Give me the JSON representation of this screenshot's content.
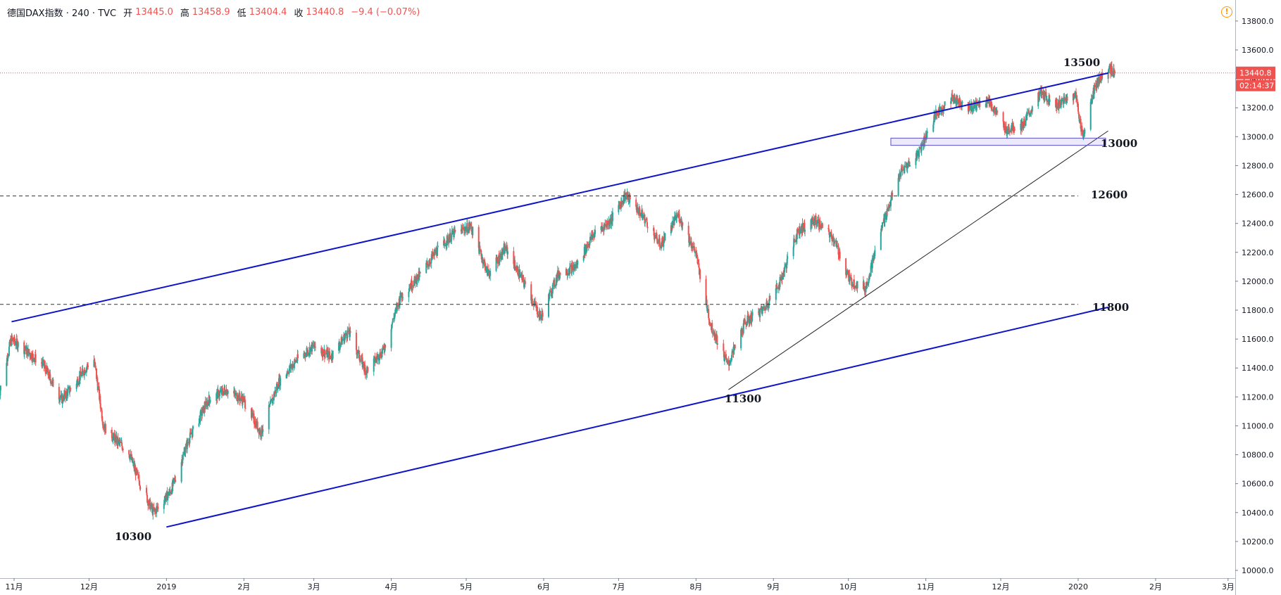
{
  "header": {
    "symbol": "德国DAX指数 · 240 · TVC",
    "open_label": "开",
    "open": "13445.0",
    "high_label": "高",
    "high": "13458.9",
    "low_label": "低",
    "low": "13404.4",
    "close_label": "收",
    "close": "13440.8",
    "change": "−9.4 (−0.07%)"
  },
  "icons": {
    "warning": "warning-icon",
    "settings": "gear-icon"
  },
  "colors": {
    "up": "#26a69a",
    "down": "#ef5350",
    "channel": "#0d14c8",
    "price_tag": "#ef5350"
  },
  "chart_data": {
    "type": "candlestick",
    "title": "",
    "xlabel": "",
    "ylabel": "",
    "ylim": [
      9900,
      13850
    ],
    "y_ticks": [
      "10000.0",
      "10200.0",
      "10400.0",
      "10600.0",
      "10800.0",
      "11000.0",
      "11200.0",
      "11400.0",
      "11600.0",
      "11800.0",
      "12000.0",
      "12200.0",
      "12400.0",
      "12600.0",
      "12800.0",
      "13000.0",
      "13200.0",
      "13400.0",
      "13600.0",
      "13800.0"
    ],
    "x_ticks": [
      "11月",
      "12月",
      "2019",
      "2月",
      "3月",
      "4月",
      "5月",
      "6月",
      "7月",
      "8月",
      "9月",
      "10月",
      "11月",
      "12月",
      "2020",
      "2月",
      "3月"
    ],
    "last_price": "13440.8",
    "countdown": "02:14:37",
    "price_path": [
      [
        "2018-10-26",
        11200
      ],
      [
        "2018-10-31",
        11600
      ],
      [
        "2018-11-06",
        11520
      ],
      [
        "2018-11-13",
        11420
      ],
      [
        "2018-11-20",
        11180
      ],
      [
        "2018-11-26",
        11300
      ],
      [
        "2018-12-03",
        11480
      ],
      [
        "2018-12-07",
        11000
      ],
      [
        "2018-12-12",
        10900
      ],
      [
        "2018-12-17",
        10820
      ],
      [
        "2018-12-21",
        10630
      ],
      [
        "2018-12-27",
        10400
      ],
      [
        "2019-01-03",
        10550
      ],
      [
        "2019-01-10",
        10900
      ],
      [
        "2019-01-18",
        11180
      ],
      [
        "2019-01-25",
        11250
      ],
      [
        "2019-02-01",
        11180
      ],
      [
        "2019-02-08",
        10950
      ],
      [
        "2019-02-15",
        11300
      ],
      [
        "2019-02-22",
        11450
      ],
      [
        "2019-03-01",
        11550
      ],
      [
        "2019-03-08",
        11480
      ],
      [
        "2019-03-15",
        11650
      ],
      [
        "2019-03-22",
        11380
      ],
      [
        "2019-03-29",
        11520
      ],
      [
        "2019-04-05",
        11900
      ],
      [
        "2019-04-12",
        12030
      ],
      [
        "2019-04-19",
        12200
      ],
      [
        "2019-04-26",
        12330
      ],
      [
        "2019-05-03",
        12380
      ],
      [
        "2019-05-10",
        12050
      ],
      [
        "2019-05-17",
        12230
      ],
      [
        "2019-05-24",
        12000
      ],
      [
        "2019-05-31",
        11750
      ],
      [
        "2019-06-07",
        12050
      ],
      [
        "2019-06-14",
        12100
      ],
      [
        "2019-06-21",
        12320
      ],
      [
        "2019-06-28",
        12420
      ],
      [
        "2019-07-04",
        12600
      ],
      [
        "2019-07-11",
        12450
      ],
      [
        "2019-07-18",
        12250
      ],
      [
        "2019-07-25",
        12460
      ],
      [
        "2019-08-01",
        12200
      ],
      [
        "2019-08-07",
        11700
      ],
      [
        "2019-08-14",
        11420
      ],
      [
        "2019-08-21",
        11720
      ],
      [
        "2019-08-28",
        11800
      ],
      [
        "2019-09-04",
        12000
      ],
      [
        "2019-09-11",
        12350
      ],
      [
        "2019-09-18",
        12420
      ],
      [
        "2019-09-25",
        12300
      ],
      [
        "2019-10-02",
        12000
      ],
      [
        "2019-10-08",
        11950
      ],
      [
        "2019-10-15",
        12400
      ],
      [
        "2019-10-22",
        12750
      ],
      [
        "2019-10-29",
        12880
      ],
      [
        "2019-11-05",
        13150
      ],
      [
        "2019-11-12",
        13270
      ],
      [
        "2019-11-19",
        13200
      ],
      [
        "2019-11-26",
        13260
      ],
      [
        "2019-12-03",
        13050
      ],
      [
        "2019-12-10",
        13080
      ],
      [
        "2019-12-17",
        13300
      ],
      [
        "2019-12-24",
        13220
      ],
      [
        "2019-12-31",
        13300
      ],
      [
        "2020-01-03",
        13000
      ],
      [
        "2020-01-08",
        13350
      ],
      [
        "2020-01-13",
        13480
      ],
      [
        "2020-01-16",
        13440
      ]
    ],
    "annotations": [
      "13500",
      "13000",
      "12600",
      "11800",
      "11300",
      "10300"
    ],
    "horizontal_levels": [
      12590,
      11840
    ],
    "channel_upper": [
      [
        "2018-10-31",
        11720
      ],
      [
        "2020-01-13",
        13440
      ]
    ],
    "channel_lower": [
      [
        "2019-01-01",
        10300
      ],
      [
        "2020-01-13",
        11820
      ]
    ],
    "trend_line": [
      [
        "2019-08-14",
        11250
      ],
      [
        "2020-01-13",
        13040
      ]
    ],
    "support_zone": [
      [
        "2019-10-18",
        12940
      ],
      [
        "2020-01-12",
        12990
      ]
    ],
    "price_line": 13440.8
  }
}
